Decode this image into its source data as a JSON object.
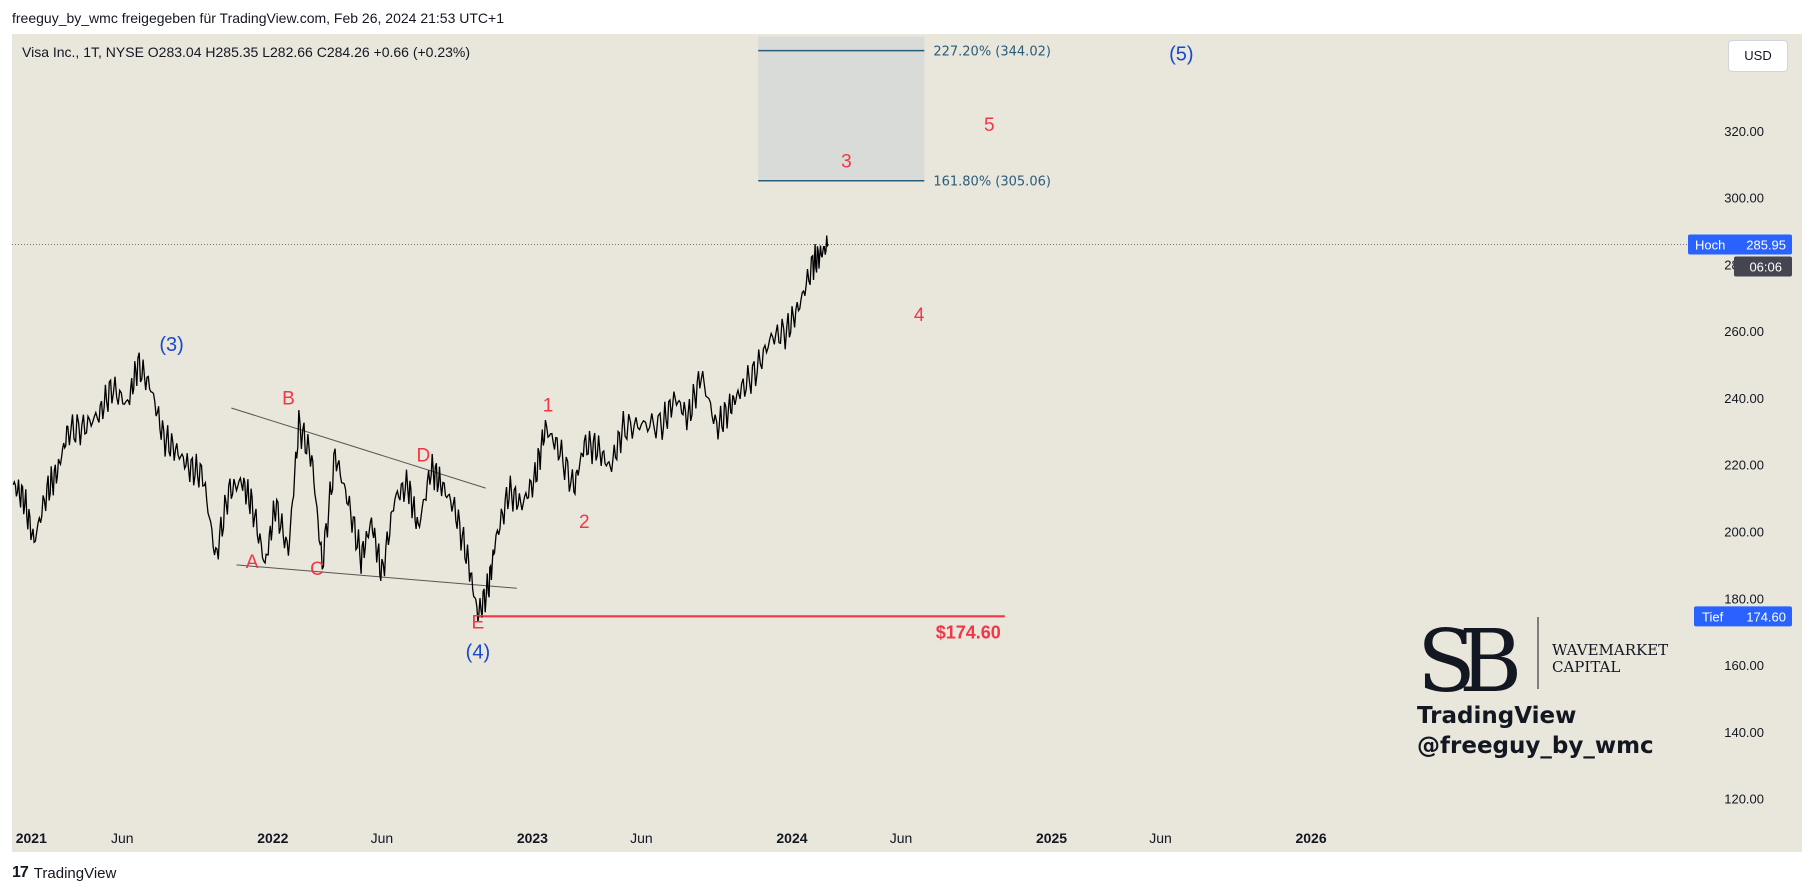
{
  "header": {
    "attribution": "freeguy_by_wmc freigegeben für TradingView.com, Feb 26, 2024 21:53 UTC+1"
  },
  "symbol_info": "Visa Inc., 1T, NYSE  O283.04  H285.35  L282.66  C284.26  +0.66 (+0.23%)",
  "currency_button": "USD",
  "footer": {
    "brand": "TradingView"
  },
  "watermark": {
    "company_line1": "WAVEMARKET",
    "company_line2": "CAPITAL",
    "platform": "TradingView",
    "handle": "@freeguy_by_wmc"
  },
  "colors": {
    "background": "#e9e6dc",
    "price_line": "#000000",
    "wave_red": "#f23645",
    "wave_blue": "#1848cc",
    "fib_line": "#2a5d7a",
    "fib_box": "#d8dbd7",
    "badge_blue": "#2962ff",
    "badge_dark": "#434651"
  },
  "chart_data": {
    "type": "line",
    "title": "",
    "x_axis": {
      "ticks": [
        "2021",
        "Jun",
        "2022",
        "Jun",
        "2023",
        "Jun",
        "2024",
        "Jun",
        "2025",
        "Jun",
        "2026"
      ],
      "range": [
        "2021-01",
        "2026-08"
      ]
    },
    "y_axis": {
      "ticks": [
        120,
        140,
        160,
        180,
        200,
        220,
        240,
        260,
        280,
        300,
        320
      ],
      "tick_labels": [
        "120.00",
        "140.00",
        "160.00",
        "180.00",
        "200.00",
        "220.00",
        "240.00",
        "260.00",
        "280.00",
        "300.00",
        "320.00"
      ],
      "range": [
        113,
        349
      ]
    },
    "series": [
      {
        "values_x": [
          2021.0,
          2021.04,
          2021.08,
          2021.13,
          2021.17,
          2021.21,
          2021.27,
          2021.33,
          2021.38,
          2021.44,
          2021.48,
          2021.53,
          2021.58,
          2021.63,
          2021.68,
          2021.73,
          2021.78,
          2021.83,
          2021.88,
          2021.92,
          2021.97,
          2022.01,
          2022.06,
          2022.1,
          2022.15,
          2022.19,
          2022.24,
          2022.29,
          2022.34,
          2022.38,
          2022.42,
          2022.47,
          2022.52,
          2022.56,
          2022.61,
          2022.65,
          2022.7,
          2022.75,
          2022.79,
          2022.83,
          2022.86,
          2022.91,
          2022.96,
          2023.01,
          2023.05,
          2023.1,
          2023.16,
          2023.2,
          2023.25,
          2023.3,
          2023.35,
          2023.42,
          2023.5,
          2023.55,
          2023.6,
          2023.65,
          2023.71,
          2023.76,
          2023.8,
          2023.86,
          2023.92,
          2023.98,
          2024.03,
          2024.08,
          2024.11,
          2024.14
        ],
        "values_y": [
          214,
          210,
          197,
          212,
          218,
          230,
          231,
          235,
          243,
          238,
          250,
          243,
          228,
          224,
          219,
          217,
          192,
          212,
          215,
          208,
          190,
          208,
          194,
          232,
          222,
          190,
          223,
          209,
          192,
          203,
          187,
          210,
          214,
          201,
          219,
          214,
          207,
          192,
          175,
          183,
          198,
          212,
          208,
          216,
          231,
          225,
          213,
          226,
          225,
          219,
          231,
          232,
          232,
          240,
          234,
          247,
          231,
          237,
          242,
          248,
          258,
          260,
          268,
          280,
          283,
          286
        ]
      }
    ],
    "wave_labels_red": [
      {
        "text": "A",
        "x": 2021.92,
        "y": 189
      },
      {
        "text": "B",
        "x": 2022.06,
        "y": 238
      },
      {
        "text": "C",
        "x": 2022.17,
        "y": 187
      },
      {
        "text": "D",
        "x": 2022.58,
        "y": 221
      },
      {
        "text": "E",
        "x": 2022.79,
        "y": 171
      },
      {
        "text": "1",
        "x": 2023.06,
        "y": 236
      },
      {
        "text": "2",
        "x": 2023.2,
        "y": 201
      },
      {
        "text": "3",
        "x": 2024.21,
        "y": 309
      },
      {
        "text": "4",
        "x": 2024.49,
        "y": 263
      },
      {
        "text": "5",
        "x": 2024.76,
        "y": 320
      }
    ],
    "wave_labels_blue": [
      {
        "text": "(3)",
        "x": 2021.61,
        "y": 254
      },
      {
        "text": "(4)",
        "x": 2022.79,
        "y": 162
      },
      {
        "text": "(5)",
        "x": 2025.5,
        "y": 341
      }
    ],
    "triangle_lines": [
      {
        "x1": 2021.84,
        "y1": 237,
        "x2": 2022.82,
        "y2": 213
      },
      {
        "x1": 2021.86,
        "y1": 190,
        "x2": 2022.94,
        "y2": 183
      }
    ],
    "support_line": {
      "x1": 2022.79,
      "x2": 2024.82,
      "y": 174.6,
      "label": "$174.60"
    },
    "fib_zone": {
      "x1": 2023.87,
      "x2": 2024.51,
      "levels": [
        {
          "y": 344.02,
          "label": "227.20% (344.02)"
        },
        {
          "y": 305.06,
          "label": "161.80% (305.06)"
        }
      ]
    },
    "current_level": {
      "y": 285.95,
      "badges": [
        {
          "label": "Hoch",
          "value": "285.95"
        },
        {
          "value": "06:06"
        }
      ]
    },
    "low_level": {
      "y": 174.6,
      "label": "Tief",
      "value": "174.60"
    },
    "grid": false,
    "legend": "none"
  }
}
